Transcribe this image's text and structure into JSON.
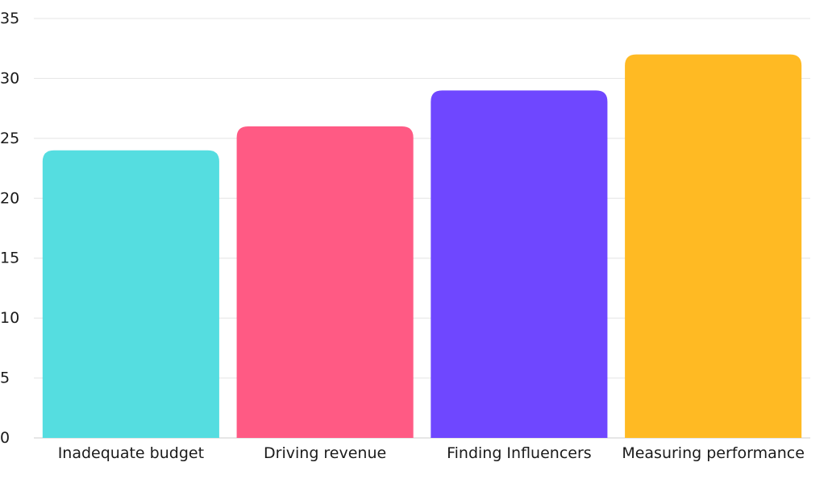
{
  "chart_data": {
    "type": "bar",
    "categories": [
      "Inadequate budget",
      "Driving revenue",
      "Finding Influencers",
      "Measuring performance"
    ],
    "values": [
      24,
      26,
      29,
      32
    ],
    "colors": [
      "#55DDE0",
      "#FF5A84",
      "#6F47FF",
      "#FFBA23"
    ],
    "ylim": [
      0,
      35
    ],
    "yticks": [
      0,
      5,
      10,
      15,
      20,
      25,
      30,
      35
    ],
    "grid": true,
    "title": "",
    "xlabel": "",
    "ylabel": ""
  }
}
